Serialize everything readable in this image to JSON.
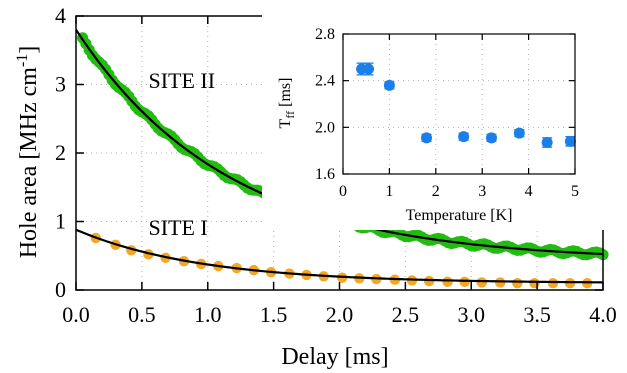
{
  "chart_data": [
    {
      "type": "scatter",
      "xlabel": "Delay [ms]",
      "ylabel": "Hole area [MHz cm",
      "ylabel_sup": "-1",
      "ylabel_close": "]",
      "xlim": [
        0,
        4
      ],
      "ylim": [
        0,
        4
      ],
      "xticks": [
        0.0,
        0.5,
        1.0,
        1.5,
        2.0,
        2.5,
        3.0,
        3.5,
        4.0
      ],
      "xtick_labels": [
        "0.0",
        "0.5",
        "1.0",
        "1.5",
        "2.0",
        "2.5",
        "3.0",
        "3.5",
        "4.0"
      ],
      "yticks": [
        0,
        1,
        2,
        3,
        4
      ],
      "ytick_labels": [
        "0",
        "1",
        "2",
        "3",
        "4"
      ],
      "annotations": [
        {
          "text": "SITE II",
          "x": 0.55,
          "y": 2.95
        },
        {
          "text": "SITE I",
          "x": 0.55,
          "y": 0.8
        }
      ],
      "series": [
        {
          "color": "#22bb11",
          "points_every_ms": 0.025,
          "x_range": [
            0.05,
            4.0
          ],
          "model": {
            "A": 3.38,
            "tau": 1.15,
            "C": 0.42
          }
        },
        {
          "color": "#f5a623",
          "x": [
            0.15,
            0.3,
            0.42,
            0.55,
            0.68,
            0.82,
            0.95,
            1.08,
            1.22,
            1.35,
            1.48,
            1.62,
            1.75,
            1.88,
            2.02,
            2.15,
            2.28,
            2.42,
            2.55,
            2.68,
            2.82,
            2.95,
            3.08,
            3.22,
            3.35,
            3.48,
            3.62,
            3.75,
            3.88
          ],
          "y": [
            0.76,
            0.66,
            0.58,
            0.52,
            0.47,
            0.42,
            0.38,
            0.35,
            0.32,
            0.29,
            0.26,
            0.24,
            0.22,
            0.2,
            0.18,
            0.17,
            0.16,
            0.15,
            0.14,
            0.13,
            0.12,
            0.12,
            0.11,
            0.11,
            0.1,
            0.1,
            0.1,
            0.1,
            0.1
          ]
        }
      ],
      "fits": [
        {
          "color": "#000000",
          "A": 3.38,
          "tau": 1.15,
          "C": 0.42,
          "x0": 0.0
        },
        {
          "color": "#000000",
          "A": 0.78,
          "tau": 0.95,
          "C": 0.1,
          "x0": 0.0
        }
      ]
    },
    {
      "type": "scatter",
      "xlabel": "Temperature [K]",
      "ylabel": "T",
      "ylabel_sub": "ff",
      "ylabel_unit": " [ms]",
      "xlim": [
        0,
        5
      ],
      "ylim": [
        1.6,
        2.8
      ],
      "xticks": [
        0,
        1,
        2,
        3,
        4,
        5
      ],
      "xtick_labels": [
        "0",
        "1",
        "2",
        "3",
        "4",
        "5"
      ],
      "yticks": [
        1.6,
        2.0,
        2.4,
        2.8
      ],
      "ytick_labels": [
        "1.6",
        "2.0",
        "2.4",
        "2.8"
      ],
      "series": [
        {
          "color": "#1a7fe8",
          "x": [
            0.4,
            0.55,
            1.0,
            1.8,
            2.6,
            3.2,
            3.8,
            4.4,
            4.9
          ],
          "y": [
            2.5,
            2.5,
            2.36,
            1.91,
            1.92,
            1.91,
            1.95,
            1.87,
            1.88
          ],
          "err": [
            0.05,
            0.05,
            0.03,
            0.03,
            0.03,
            0.03,
            0.03,
            0.04,
            0.04
          ]
        }
      ]
    }
  ]
}
